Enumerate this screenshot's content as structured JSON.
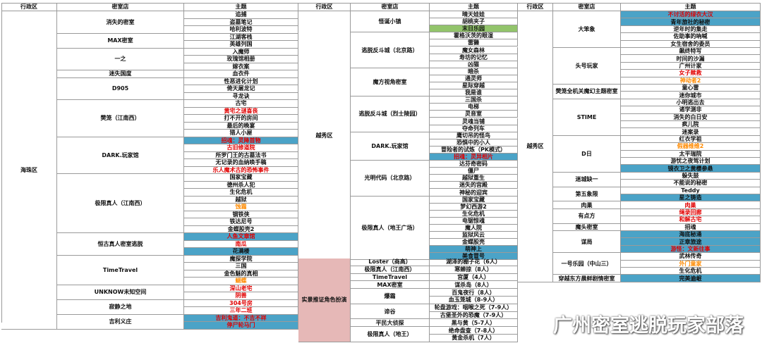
{
  "headers": {
    "district": "行政区",
    "store": "密室店",
    "theme": "主题"
  },
  "sections": [
    {
      "district": "海珠区",
      "stores": [
        {
          "name": "消失的密室",
          "themes": [
            {
              "t": "追捕"
            },
            {
              "t": "盗墓笔记"
            },
            {
              "t": "哈利波特"
            }
          ]
        },
        {
          "name": "MAX密室",
          "themes": [
            {
              "t": "江湖客栈"
            },
            {
              "t": "英雄列国"
            }
          ]
        },
        {
          "name": "一之",
          "themes": [
            {
              "t": "入魔师"
            },
            {
              "t": "玫瑰馆相册"
            },
            {
              "t": "嫁衣案"
            }
          ]
        },
        {
          "name": "迷失国度",
          "themes": [
            {
              "t": "血衣件"
            }
          ]
        },
        {
          "name": "D905",
          "themes": [
            {
              "t": "性恶进化计划"
            },
            {
              "t": "倚天屠龙记"
            },
            {
              "t": "寻龙诀"
            }
          ]
        },
        {
          "name": "樊笼（江南西）",
          "themes": [
            {
              "t": "古宅"
            },
            {
              "t": "黄宅之谜喜丧",
              "c": "red"
            },
            {
              "t": "打不开的房间"
            },
            {
              "t": "最后的晚宴"
            },
            {
              "t": "猎人小屋"
            }
          ]
        },
        {
          "name": "DARK.玩家馆",
          "themes": [
            {
              "t": "招魂：灵降首物",
              "c": "red",
              "bg": "blue"
            },
            {
              "t": "古旧修道院",
              "c": "red"
            },
            {
              "t": "所罗门王的古墓法书"
            },
            {
              "t": "无记录的血纳唤手稿"
            },
            {
              "t": "乐人魔术古的恐怖事件",
              "c": "red"
            }
          ]
        },
        {
          "name": "极限真人（江南西）",
          "themes": [
            {
              "t": "国家宝藏"
            },
            {
              "t": "德州杀人犯"
            },
            {
              "t": "生化危机"
            },
            {
              "t": "越狱"
            },
            {
              "t": "蚀霜",
              "c": "orange"
            },
            {
              "t": "钢铁侠"
            },
            {
              "t": "铁达尼号"
            },
            {
              "t": "金蝶股壳2"
            }
          ]
        },
        {
          "name": "恒古真人密室逃脱",
          "themes": [
            {
              "t": "人鱼文章馆",
              "c": "red",
              "bg": "blue"
            },
            {
              "t": "南瓜",
              "c": "red"
            },
            {
              "t": "花满楼",
              "bg": "blue"
            }
          ]
        },
        {
          "name": "TimeTravel",
          "themes": [
            {
              "t": "魔探学院"
            },
            {
              "t": "三国"
            },
            {
              "t": "金色魅的真相"
            },
            {
              "t": "蝴蝶",
              "c": "orange"
            }
          ]
        },
        {
          "name": "UNKNOW未知空间",
          "themes": [
            {
              "t": "深山老宅",
              "c": "red"
            },
            {
              "t": "阴兽",
              "c": "red"
            }
          ]
        },
        {
          "name": "寂静之地",
          "themes": [
            {
              "t": "304号房",
              "c": "red"
            },
            {
              "t": "三年二班",
              "c": "red"
            }
          ]
        },
        {
          "name": "吉利义庄",
          "themes": [
            {
              "t": "吉利鬼道：不吉不祥",
              "c": "red",
              "bg": "blue"
            },
            {
              "t": "停尸轮马门",
              "c": "red",
              "bg": "blue"
            }
          ]
        }
      ]
    },
    {
      "district": "越秀区",
      "stores": [
        {
          "name": "怪诞小镇",
          "themes": [
            {
              "t": "晴天娃娃"
            },
            {
              "t": "胡桃夹子"
            },
            {
              "t": "末日乐园",
              "bg": "green"
            }
          ]
        },
        {
          "name": "逃脱反斗城（北京路）",
          "themes": [
            {
              "t": "霍格沃茨的眼湿"
            },
            {
              "t": "雷獭"
            },
            {
              "t": "魔女森林"
            },
            {
              "t": "寿坊的记忆"
            },
            {
              "t": "凶猫"
            }
          ]
        },
        {
          "name": "魔方视角密室",
          "themes": [
            {
              "t": "暗杀"
            },
            {
              "t": "通灵师"
            },
            {
              "t": "星际穿越"
            },
            {
              "t": "我是谁"
            }
          ]
        },
        {
          "name": "逃脱反斗城（烈士陵园）",
          "themes": [
            {
              "t": "三国杀"
            },
            {
              "t": "电梯"
            },
            {
              "t": "灵音室"
            },
            {
              "t": "灵魂当铺"
            },
            {
              "t": "夺命列车"
            }
          ]
        },
        {
          "name": "DARK.玩家馆",
          "themes": [
            {
              "t": "鹰切吊的怪鸟"
            },
            {
              "t": "恐惧中的小人"
            },
            {
              "t": "冒险者的试炼（PK模式）"
            },
            {
              "t": "招魂：灵异相片",
              "c": "red",
              "bg": "blue"
            }
          ]
        },
        {
          "name": "光明代码（北京路）",
          "themes": [
            {
              "t": "达芬奇密码"
            },
            {
              "t": "僵尸"
            },
            {
              "t": "越狱重生"
            },
            {
              "t": "迷失的宫殿"
            },
            {
              "t": "神秘的迎宾"
            }
          ]
        },
        {
          "name": "极限真人（地王广场）",
          "themes": [
            {
              "t": "国家宝藏"
            },
            {
              "t": "梦幻西游2"
            },
            {
              "t": "生化危机"
            },
            {
              "t": "电锯惊魂"
            },
            {
              "t": "魔人院"
            },
            {
              "t": "监狱风云"
            },
            {
              "t": "金蝶股壳"
            },
            {
              "t": "萌神上",
              "bg": "blue"
            },
            {
              "t": "美食冒号",
              "bg": "blue"
            }
          ]
        }
      ]
    },
    {
      "district": "越秀区",
      "stores": [
        {
          "name": "大笨象",
          "themes": [
            {
              "t": "不讨活的绿衣大汉",
              "c": "red",
              "bg": "blue"
            },
            {
              "t": "青年旅社的秘密",
              "bg": "blue"
            },
            {
              "t": "逆年时的集走"
            },
            {
              "t": "佐助事的吶喊"
            },
            {
              "t": "女生宿舍的委员"
            }
          ]
        },
        {
          "name": "头号玩家",
          "themes": [
            {
              "t": "飙终特写"
            },
            {
              "t": "时间的沙漏"
            },
            {
              "t": "广州计家"
            },
            {
              "t": "女子赎救",
              "c": "red"
            },
            {
              "t": "神动者2",
              "c": "orange"
            }
          ]
        },
        {
          "name": "樊笼全机关魔幻主题密室",
          "themes": [
            {
              "t": "童心雷"
            },
            {
              "t": "迷你城市"
            }
          ]
        },
        {
          "name": "STIME",
          "themes": [
            {
              "t": "小明逃出去"
            },
            {
              "t": "诸学测非"
            },
            {
              "t": "消失的白日安"
            },
            {
              "t": "疯儿院"
            },
            {
              "t": "迷案录"
            }
          ]
        },
        {
          "name": "D日",
          "themes": [
            {
              "t": "红衣学祖"
            },
            {
              "t": "假器维维2",
              "c": "orange"
            },
            {
              "t": "太平瑞院"
            },
            {
              "t": "游忧之夜驾计划"
            },
            {
              "t": "镜衣卫之黄樱参悬",
              "bg": "blue"
            }
          ]
        },
        {
          "name": "迷城缺一",
          "themes": [
            {
              "t": "躲失鼓"
            },
            {
              "t": "不能说的秘密"
            }
          ]
        },
        {
          "name": "第五象限",
          "themes": [
            {
              "t": "Teddy"
            },
            {
              "t": "星之铸造",
              "bg": "blue"
            }
          ]
        },
        {
          "name": "肉巢",
          "themes": [
            {
              "t": "肉巢",
              "c": "red"
            }
          ]
        },
        {
          "name": "有点方",
          "themes": [
            {
              "t": "绳录回廊",
              "c": "red"
            },
            {
              "t": "和解古宅",
              "c": "red"
            }
          ]
        },
        {
          "name": "魔头密室",
          "themes": [
            {
              "t": "招魂"
            }
          ]
        },
        {
          "name": "谋局",
          "themes": [
            {
              "t": "海底秘涌",
              "bg": "blue"
            },
            {
              "t": "正章旅途",
              "bg": "blue"
            },
            {
              "t": "游怪：文新往事",
              "c": "red",
              "bg": "blue"
            }
          ]
        },
        {
          "name": "一号乐园（中山三）",
          "themes": [
            {
              "t": "武林传奇"
            },
            {
              "t": "外门童家",
              "c": "orange"
            },
            {
              "t": "生化危机"
            }
          ]
        },
        {
          "name": "穿越东方晨鲜剧情密室",
          "themes": [
            {
              "t": "完美逾岷",
              "bg": "blue"
            }
          ]
        }
      ]
    },
    {
      "district": "实景推证角色扮演",
      "stores": [
        {
          "name": "Loster（商高）",
          "themes": [
            {
              "t": "湖泽的棚子花（6人）"
            }
          ]
        },
        {
          "name": "极限真人（江南西）",
          "themes": [
            {
              "t": "寒蝉掠（8人）"
            }
          ]
        },
        {
          "name": "TimeTravel",
          "themes": [
            {
              "t": "宫厦（4人）"
            }
          ]
        },
        {
          "name": "MAX密室",
          "themes": [
            {
              "t": "谋杀岛（8人）"
            }
          ]
        },
        {
          "name": "爆霜",
          "themes": [
            {
              "t": "百鬼夜行（8人）"
            },
            {
              "t": "血玉笼城（8-9人）"
            }
          ]
        },
        {
          "name": "谛谷",
          "themes": [
            {
              "t": "轮盘游戏：咽喉之死（7-9人）"
            },
            {
              "t": "古堡圣外的恐魔（7-9人）"
            }
          ]
        },
        {
          "name": "平民大侦探",
          "themes": [
            {
              "t": "黑与黄（5-7人）"
            }
          ]
        },
        {
          "name": "极限真人（地王）",
          "themes": [
            {
              "t": "绝命盘查（7-8人）"
            },
            {
              "t": "黄金杀机（7人）"
            }
          ]
        }
      ]
    }
  ],
  "watermark": {
    "text": "广州密室逃脱玩家部落",
    "icon": "wechat-logo-icon"
  },
  "colors": {
    "red": "#e10000",
    "orange": "#ff8a00",
    "blue": "#4ba3c7",
    "green": "#92c46b",
    "pink": "#e6b8b7"
  }
}
